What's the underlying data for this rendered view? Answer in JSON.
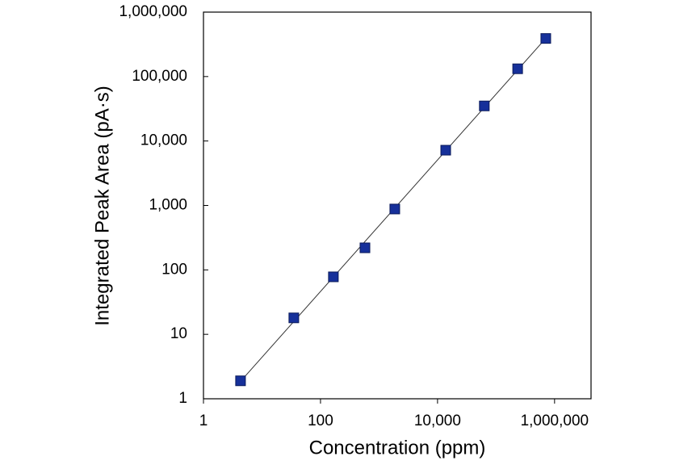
{
  "chart_data": {
    "type": "scatter",
    "x_label": "Concentration (ppm)",
    "y_label": "Integrated Peak Area (pA·s)",
    "x": [
      4.3,
      35,
      166,
      575,
      1860,
      13800,
      63000,
      234000,
      708000
    ],
    "series": [
      {
        "color": "#16309a",
        "values": [
          1.9,
          18,
          78,
          220,
          880,
          7200,
          35000,
          132000,
          390000
        ]
      }
    ],
    "log_x": true,
    "log_y": true,
    "fit_line": true,
    "xlim": [
      1,
      4200000
    ],
    "ylim": [
      1,
      1000000
    ],
    "xticks": [
      1,
      100,
      {
        "value": 10000,
        "label": "10,000"
      },
      {
        "value": 1000000,
        "label": "1,000,000"
      }
    ],
    "yticks": [
      1,
      10,
      100,
      {
        "value": 1000,
        "label": "1,000"
      },
      {
        "value": 10000,
        "label": "10,000"
      },
      {
        "value": 100000,
        "label": "100,000"
      },
      {
        "value": 1000000,
        "label": "1,000,000"
      }
    ]
  }
}
